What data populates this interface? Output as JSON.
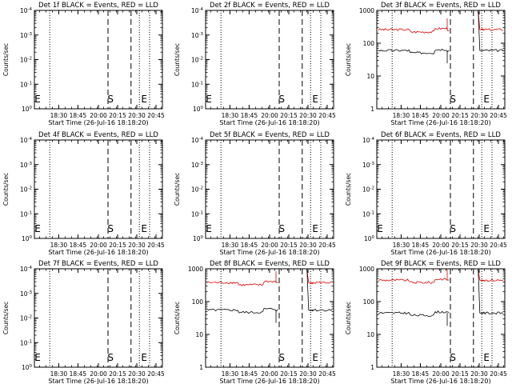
{
  "chart_data": [
    {
      "type": "line",
      "title": "Det 1f BLACK = Events, RED = LLD",
      "xlabel": "Start Time (26-Jul-16 18:18:20)",
      "ylabel": "Counts/sec",
      "yscale": "log",
      "ylim_exp": [
        0,
        4
      ],
      "ytick_labels": [
        "10^0",
        "10^-1",
        "10^-2",
        "10^-3",
        "10^-4"
      ],
      "xticks": [
        "18:30",
        "18:45",
        "20:00",
        "20:15",
        "20:30",
        "20:45"
      ],
      "markers": {
        "S": "S",
        "E": "E"
      },
      "series": []
    },
    {
      "type": "line",
      "title": "Det 2f BLACK = Events, RED = LLD",
      "xlabel": "Start Time (26-Jul-16 18:18:20)",
      "ylabel": "Counts/sec",
      "yscale": "log",
      "ylim_exp": [
        0,
        4
      ],
      "ytick_labels": [
        "10^0",
        "10^-1",
        "10^-2",
        "10^-3",
        "10^-4"
      ],
      "xticks": [
        "18:30",
        "18:45",
        "20:00",
        "20:15",
        "20:30",
        "20:45"
      ],
      "markers": {
        "S": "S",
        "E": "E"
      },
      "series": []
    },
    {
      "type": "line",
      "title": "Det 3f BLACK = Events, RED = LLD",
      "xlabel": "Start Time (26-Jul-16 18:18:20)",
      "ylabel": "Counts/sec",
      "yscale": "log",
      "ylim": [
        1,
        1000
      ],
      "ytick_labels": [
        "1",
        "10",
        "100",
        "1000"
      ],
      "xticks": [
        "18:30",
        "18:45",
        "20:00",
        "20:15",
        "20:30",
        "20:45"
      ],
      "markers": {
        "S": "S",
        "E": "E"
      },
      "series": [
        {
          "color": "#e00000",
          "level": 260
        },
        {
          "color": "#000000",
          "level": 60
        }
      ]
    },
    {
      "type": "line",
      "title": "Det 4f BLACK = Events, RED = LLD",
      "xlabel": "Start Time (26-Jul-16 18:18:20)",
      "ylabel": "Counts/sec",
      "yscale": "log",
      "ylim_exp": [
        0,
        4
      ],
      "ytick_labels": [
        "10^0",
        "10^-1",
        "10^-2",
        "10^-3",
        "10^-4"
      ],
      "xticks": [
        "18:30",
        "18:45",
        "20:00",
        "20:15",
        "20:30",
        "20:45"
      ],
      "markers": {
        "S": "S",
        "E": "E"
      },
      "series": []
    },
    {
      "type": "line",
      "title": "Det 5f BLACK = Events, RED = LLD",
      "xlabel": "Start Time (26-Jul-16 18:18:20)",
      "ylabel": "Counts/sec",
      "yscale": "log",
      "ylim_exp": [
        0,
        4
      ],
      "ytick_labels": [
        "10^0",
        "10^-1",
        "10^-2",
        "10^-3",
        "10^-4"
      ],
      "xticks": [
        "18:30",
        "18:45",
        "20:00",
        "20:15",
        "20:30",
        "20:45"
      ],
      "markers": {
        "S": "S",
        "E": "E"
      },
      "series": []
    },
    {
      "type": "line",
      "title": "Det 6f BLACK = Events, RED = LLD",
      "xlabel": "Start Time (26-Jul-16 18:18:20)",
      "ylabel": "Counts/sec",
      "yscale": "log",
      "ylim_exp": [
        0,
        4
      ],
      "ytick_labels": [
        "10^0",
        "10^-1",
        "10^-2",
        "10^-3",
        "10^-4"
      ],
      "xticks": [
        "18:30",
        "18:45",
        "20:00",
        "20:15",
        "20:30",
        "20:45"
      ],
      "markers": {
        "S": "S",
        "E": "E"
      },
      "series": []
    },
    {
      "type": "line",
      "title": "Det 7f BLACK = Events, RED = LLD",
      "xlabel": "Start Time (26-Jul-16 18:18:20)",
      "ylabel": "Counts/sec",
      "yscale": "log",
      "ylim_exp": [
        0,
        4
      ],
      "ytick_labels": [
        "10^0",
        "10^-1",
        "10^-2",
        "10^-3",
        "10^-4"
      ],
      "xticks": [
        "18:30",
        "18:45",
        "20:00",
        "20:15",
        "20:30",
        "20:45"
      ],
      "markers": {
        "S": "S",
        "E": "E"
      },
      "series": []
    },
    {
      "type": "line",
      "title": "Det 8f BLACK = Events, RED = LLD",
      "xlabel": "Start Time (26-Jul-16 18:18:20)",
      "ylabel": "Counts/sec",
      "yscale": "log",
      "ylim": [
        1,
        1000
      ],
      "ytick_labels": [
        "1",
        "10",
        "100",
        "1000"
      ],
      "xticks": [
        "18:30",
        "18:45",
        "20:00",
        "20:15",
        "20:30",
        "20:45"
      ],
      "markers": {
        "S": "S",
        "E": "E"
      },
      "series": [
        {
          "color": "#e00000",
          "level": 380
        },
        {
          "color": "#000000",
          "level": 55
        }
      ]
    },
    {
      "type": "line",
      "title": "Det 9f BLACK = Events, RED = LLD",
      "xlabel": "Start Time (26-Jul-16 18:18:20)",
      "ylabel": "Counts/sec",
      "yscale": "log",
      "ylim": [
        1,
        1000
      ],
      "ytick_labels": [
        "1",
        "10",
        "100",
        "1000"
      ],
      "xticks": [
        "18:30",
        "18:45",
        "20:00",
        "20:15",
        "20:30",
        "20:45"
      ],
      "markers": {
        "S": "S",
        "E": "E"
      },
      "series": [
        {
          "color": "#e00000",
          "level": 450
        },
        {
          "color": "#000000",
          "level": 45
        }
      ]
    }
  ]
}
